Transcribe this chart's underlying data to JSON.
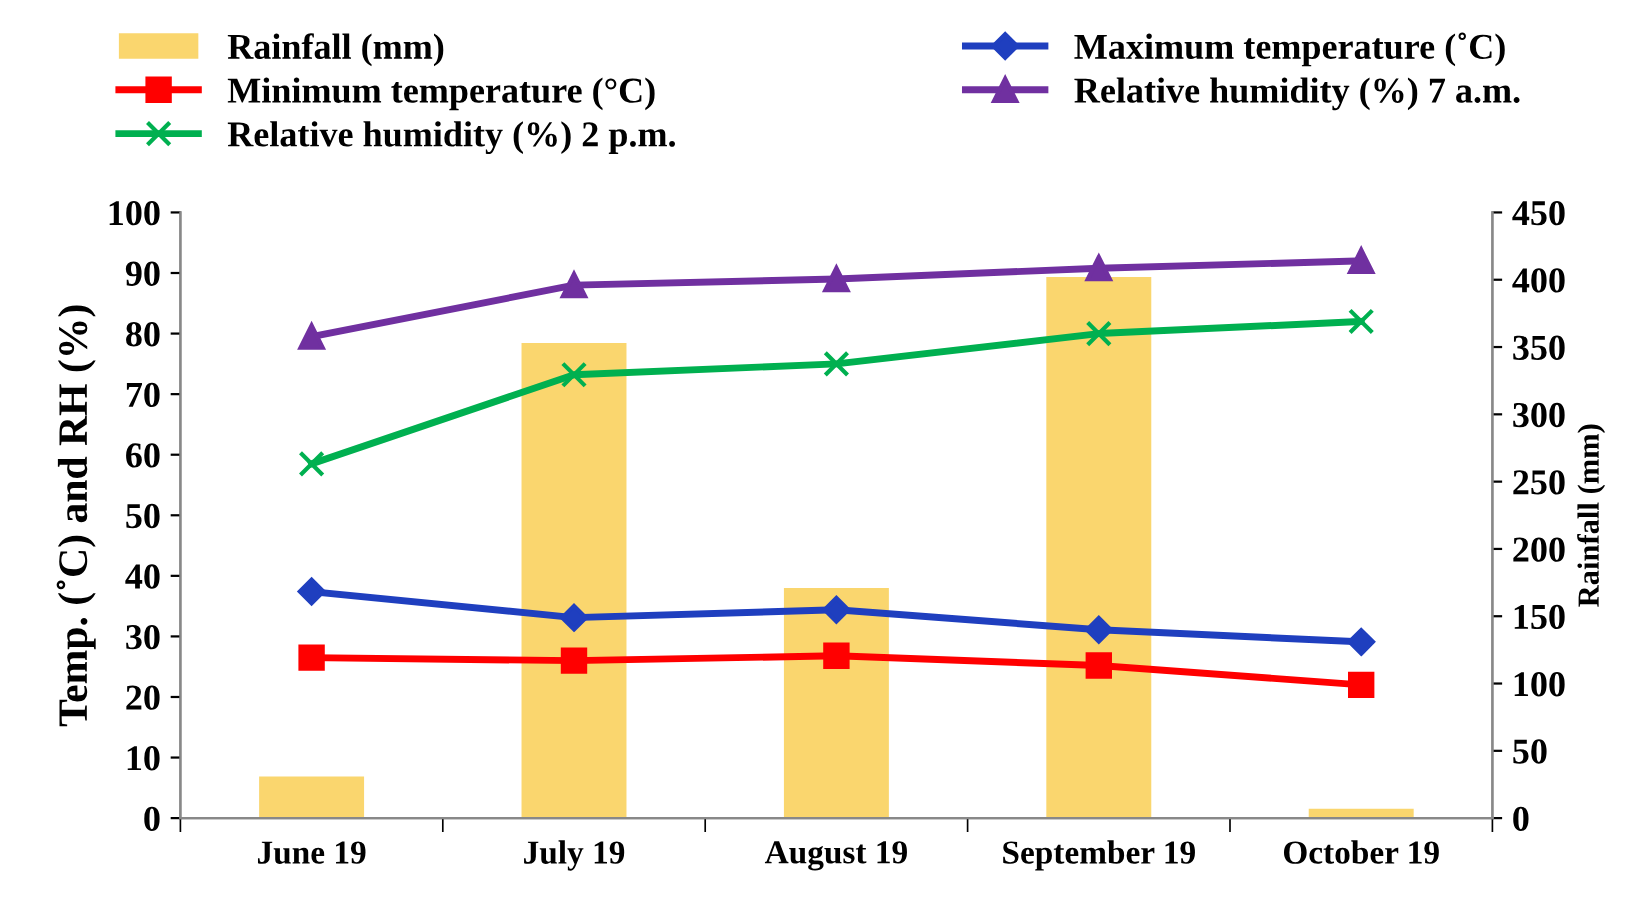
{
  "chart_data": {
    "type": "bar",
    "categories": [
      "June 19",
      "July 19",
      "August 19",
      "September 19",
      "October 19"
    ],
    "ylabel": "Temp. (˚C) and RH (%)",
    "y2label": "Rainfall (mm)",
    "ylim": [
      0,
      100
    ],
    "yticks": [
      0,
      10,
      20,
      30,
      40,
      50,
      60,
      70,
      80,
      90,
      100
    ],
    "y2lim": [
      0,
      450
    ],
    "y2ticks": [
      0,
      50,
      100,
      150,
      200,
      250,
      300,
      350,
      400,
      450
    ],
    "legend": "top",
    "grid": false,
    "series": [
      {
        "name": "Rainfall (mm)",
        "axis": "y2",
        "color": "#fad66e",
        "values": [
          31,
          353,
          171,
          402,
          7
        ]
      },
      {
        "name": "Maximum temperature (˚C)",
        "type": "line",
        "marker": "diamond",
        "color": "#1f3fbf",
        "values": [
          37.4,
          33.1,
          34.4,
          31.1,
          29.1
        ]
      },
      {
        "name": "Minimum temperature (°C)",
        "type": "line",
        "marker": "square",
        "color": "#ff0000",
        "values": [
          26.5,
          26,
          26.8,
          25.2,
          22
        ]
      },
      {
        "name": "Relative humidity (%) 7 a.m.",
        "type": "line",
        "marker": "triangle",
        "color": "#7030a0",
        "values": [
          79.5,
          88,
          89,
          90.8,
          92
        ]
      },
      {
        "name": "Relative humidity (%) 2 p.m.",
        "type": "line",
        "marker": "cross",
        "color": "#00b050",
        "values": [
          58.5,
          73.2,
          75,
          80,
          82
        ]
      }
    ]
  }
}
